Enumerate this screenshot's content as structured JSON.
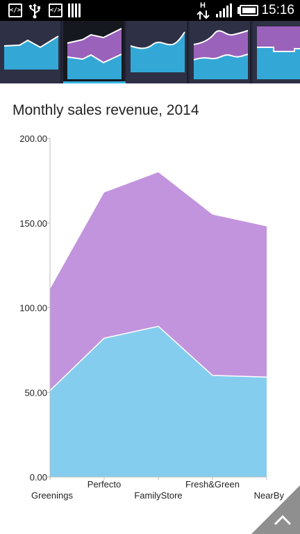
{
  "status_bar": {
    "time": "15:16",
    "icons": [
      "code-icon",
      "usb-icon",
      "code-icon",
      "sd-card-icon",
      "data-transfer-icon",
      "signal-icon",
      "battery-icon"
    ],
    "code_glyph": "</>",
    "network_letter": "H"
  },
  "thumbnails": [
    {
      "name": "area-chart-thumbnail",
      "selected": false
    },
    {
      "name": "stacked-area-chart-thumbnail",
      "selected": true
    },
    {
      "name": "spline-area-chart-thumbnail",
      "selected": false
    },
    {
      "name": "stacked-spline-area-chart-thumbnail",
      "selected": false
    },
    {
      "name": "stacked-step-area-chart-thumbnail",
      "selected": false
    }
  ],
  "colors": {
    "series_1": "#85cdee",
    "series_2": "#c294dd",
    "thumb_blue": "#33a8d6",
    "thumb_purple": "#9a62bb",
    "accent": "#33b5e5"
  },
  "chart_data": {
    "type": "area",
    "stacked": true,
    "title": "Monthly sales revenue, 2014",
    "categories": [
      "Greenings",
      "Perfecto",
      "FamilyStore",
      "Fresh&Green",
      "NearBy"
    ],
    "series": [
      {
        "values": [
          51,
          82,
          89,
          60,
          59
        ]
      },
      {
        "values": [
          60,
          86,
          91,
          95,
          89
        ]
      }
    ],
    "ylim": [
      0,
      200
    ],
    "yticks": [
      "0.00",
      "50.00",
      "100.00",
      "150.00",
      "200.00"
    ],
    "grid": false
  }
}
